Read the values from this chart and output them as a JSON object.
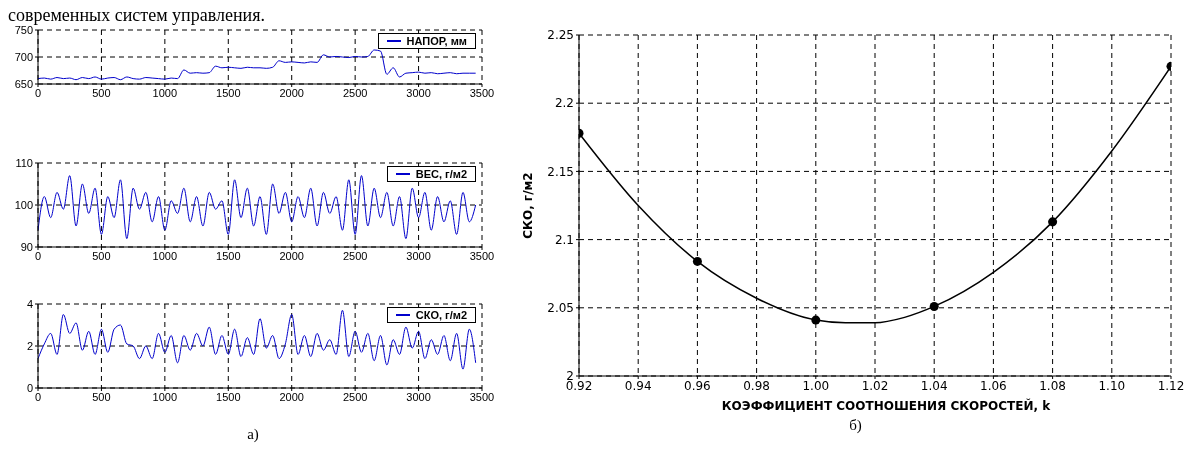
{
  "chart_data": [
    {
      "type": "line",
      "title": "современных систем управления.",
      "x": [
        0,
        50,
        100,
        150,
        200,
        250,
        300,
        350,
        400,
        450,
        500,
        550,
        600,
        650,
        700,
        750,
        800,
        850,
        900,
        950,
        1000,
        1050,
        1100,
        1150,
        1200,
        1250,
        1300,
        1350,
        1400,
        1450,
        1500,
        1550,
        1600,
        1650,
        1700,
        1750,
        1800,
        1850,
        1900,
        1950,
        2000,
        2050,
        2100,
        2150,
        2200,
        2250,
        2300,
        2350,
        2400,
        2450,
        2500,
        2550,
        2600,
        2650,
        2700,
        2750,
        2800,
        2850,
        2900,
        2950,
        3000,
        3050,
        3100,
        3150,
        3200,
        3250,
        3300,
        3350,
        3400,
        3450
      ],
      "series": [
        {
          "name": "НАПОР, мм",
          "color": "#0000cc",
          "values": [
            660,
            661,
            659,
            662,
            660,
            661,
            658,
            662,
            660,
            663,
            659,
            661,
            662,
            658,
            663,
            660,
            659,
            662,
            661,
            660,
            659,
            661,
            660,
            676,
            670,
            671,
            670,
            671,
            683,
            680,
            681,
            680,
            679,
            681,
            680,
            680,
            679,
            681,
            693,
            690,
            691,
            690,
            689,
            691,
            690,
            704,
            700,
            701,
            700,
            699,
            701,
            700,
            701,
            713,
            711,
            668,
            680,
            663,
            670,
            671,
            672,
            670,
            671,
            669,
            670,
            671,
            669,
            670,
            670,
            670
          ]
        }
      ],
      "xlim": [
        0,
        3500
      ],
      "xticks": [
        0,
        500,
        1000,
        1500,
        2000,
        2500,
        3000,
        3500
      ],
      "ylim": [
        650,
        750
      ],
      "yticks": [
        650,
        700,
        750
      ],
      "grid": true,
      "legend": "top right"
    },
    {
      "type": "line",
      "x": [
        0,
        50,
        100,
        150,
        200,
        250,
        300,
        350,
        400,
        450,
        500,
        550,
        600,
        650,
        700,
        750,
        800,
        850,
        900,
        950,
        1000,
        1050,
        1100,
        1150,
        1200,
        1250,
        1300,
        1350,
        1400,
        1450,
        1500,
        1550,
        1600,
        1650,
        1700,
        1750,
        1800,
        1850,
        1900,
        1950,
        2000,
        2050,
        2100,
        2150,
        2200,
        2250,
        2300,
        2350,
        2400,
        2450,
        2500,
        2550,
        2600,
        2650,
        2700,
        2750,
        2800,
        2850,
        2900,
        2950,
        3000,
        3050,
        3100,
        3150,
        3200,
        3250,
        3300,
        3350,
        3400,
        3450
      ],
      "series": [
        {
          "name": "ВЕС, г/м2",
          "color": "#0000cc",
          "values": [
            94,
            102,
            97,
            103,
            99,
            107,
            95,
            105,
            98,
            104,
            93,
            102,
            97,
            106,
            92,
            104,
            99,
            103,
            96,
            102,
            94,
            101,
            98,
            104,
            96,
            102,
            95,
            103,
            99,
            101,
            93,
            106,
            97,
            104,
            95,
            102,
            93,
            105,
            98,
            103,
            96,
            102,
            97,
            104,
            95,
            103,
            98,
            102,
            94,
            106,
            93,
            107,
            95,
            104,
            97,
            103,
            95,
            102,
            92,
            104,
            97,
            103,
            94,
            102,
            96,
            101,
            93,
            103,
            96,
            100
          ]
        }
      ],
      "xlim": [
        0,
        3500
      ],
      "xticks": [
        0,
        500,
        1000,
        1500,
        2000,
        2500,
        3000,
        3500
      ],
      "ylim": [
        90,
        110
      ],
      "yticks": [
        90,
        100,
        110
      ],
      "grid": true,
      "legend": "top right"
    },
    {
      "type": "line",
      "annotations": [
        "а)"
      ],
      "x": [
        0,
        50,
        100,
        150,
        200,
        250,
        300,
        350,
        400,
        450,
        500,
        550,
        600,
        650,
        700,
        750,
        800,
        850,
        900,
        950,
        1000,
        1050,
        1100,
        1150,
        1200,
        1250,
        1300,
        1350,
        1400,
        1450,
        1500,
        1550,
        1600,
        1650,
        1700,
        1750,
        1800,
        1850,
        1900,
        1950,
        2000,
        2050,
        2100,
        2150,
        2200,
        2250,
        2300,
        2350,
        2400,
        2450,
        2500,
        2550,
        2600,
        2650,
        2700,
        2750,
        2800,
        2850,
        2900,
        2950,
        3000,
        3050,
        3100,
        3150,
        3200,
        3250,
        3300,
        3350,
        3400,
        3450
      ],
      "series": [
        {
          "name": "СКО, г/м2",
          "color": "#0000cc",
          "values": [
            1.4,
            2.1,
            2.6,
            1.6,
            3.5,
            2.6,
            3.1,
            1.8,
            2.7,
            1.6,
            2.8,
            1.7,
            2.8,
            3.0,
            2.1,
            2.0,
            1.4,
            2.0,
            1.4,
            2.6,
            1.7,
            2.5,
            1.2,
            2.5,
            1.8,
            2.6,
            2.0,
            2.9,
            1.6,
            2.5,
            1.6,
            2.8,
            1.5,
            2.4,
            1.6,
            3.3,
            1.9,
            2.5,
            1.4,
            2.1,
            3.5,
            1.6,
            2.5,
            1.5,
            2.6,
            1.8,
            2.3,
            1.6,
            3.7,
            1.5,
            2.7,
            1.7,
            2.6,
            1.3,
            2.5,
            1.1,
            2.3,
            1.6,
            2.9,
            1.9,
            2.7,
            1.4,
            2.3,
            1.6,
            2.5,
            1.3,
            2.6,
            0.9,
            2.8,
            1.2
          ]
        }
      ],
      "xlim": [
        0,
        3500
      ],
      "xticks": [
        0,
        500,
        1000,
        1500,
        2000,
        2500,
        3000,
        3500
      ],
      "ylim": [
        0,
        4
      ],
      "yticks": [
        0,
        2,
        4
      ],
      "grid": true,
      "legend": "top right"
    },
    {
      "type": "line",
      "xlabel": "КОЭФФИЦИЕНТ СООТНОШЕНИЯ СКОРОСТЕЙ, k",
      "ylabel": "СКО, г/м2",
      "annotations": [
        "б)"
      ],
      "series": [
        {
          "color": "#000000",
          "x": [
            0.92,
            0.94,
            0.96,
            0.98,
            1.0,
            1.01,
            1.02,
            1.03,
            1.04,
            1.06,
            1.08,
            1.1,
            1.12
          ],
          "values": [
            2.178,
            2.125,
            2.084,
            2.057,
            2.041,
            2.039,
            2.039,
            2.043,
            2.051,
            2.076,
            2.113,
            2.165,
            2.227
          ]
        },
        {
          "type": "scatter",
          "marker": "circle",
          "color": "#000000",
          "x": [
            0.92,
            0.96,
            1.0,
            1.04,
            1.08,
            1.12
          ],
          "values": [
            2.178,
            2.084,
            2.041,
            2.051,
            2.113,
            2.227
          ]
        }
      ],
      "xlim": [
        0.92,
        1.12
      ],
      "xticks": [
        {
          "value": 0.92,
          "label": "0.92"
        },
        {
          "value": 0.94,
          "label": "0.94"
        },
        {
          "value": 0.96,
          "label": "0.96"
        },
        {
          "value": 0.98,
          "label": "0.98"
        },
        {
          "value": 1.0,
          "label": "1.00"
        },
        {
          "value": 1.02,
          "label": "1.02"
        },
        {
          "value": 1.04,
          "label": "1.04"
        },
        {
          "value": 1.06,
          "label": "1.06"
        },
        {
          "value": 1.08,
          "label": "1.08"
        },
        {
          "value": 1.1,
          "label": "1.10"
        },
        {
          "value": 1.12,
          "label": "1.12"
        }
      ],
      "ylim": [
        2,
        2.25
      ],
      "yticks": [
        2,
        2.05,
        2.1,
        2.15,
        2.2,
        2.25
      ],
      "grid": true
    }
  ]
}
